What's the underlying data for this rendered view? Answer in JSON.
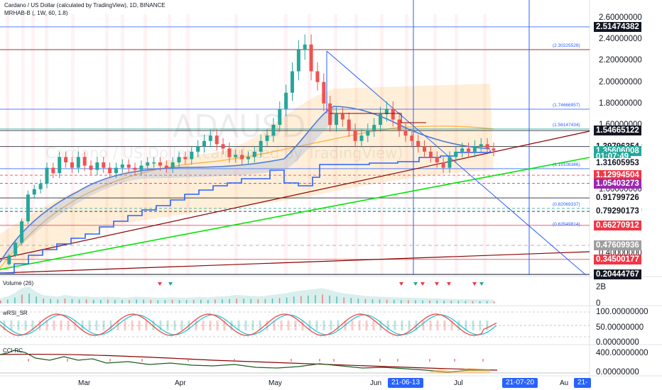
{
  "header": {
    "title_line": "Cardano / US Dollar (calculated by TradingView), 1D, BINANCE",
    "indicator_line": "MRHAB-B (, 1W, 60, 1.8)"
  },
  "watermark": {
    "symbol": "ADAUSD",
    "name": "Cardano / US Dollar (calculated by TradingView)"
  },
  "price_axis": {
    "ticks": [
      {
        "label": "2.60000000",
        "value": 2.6
      },
      {
        "label": "2.40000000",
        "value": 2.4
      },
      {
        "label": "2.20000000",
        "value": 2.2
      },
      {
        "label": "2.00000000",
        "value": 2.0
      },
      {
        "label": "1.80000000",
        "value": 1.8
      },
      {
        "label": "1.60000000",
        "value": 1.6
      },
      {
        "label": "1.40000000",
        "value": 1.4
      },
      {
        "label": "1.00000000",
        "value": 1.0
      },
      {
        "label": "0.80000000",
        "value": 0.8
      },
      {
        "label": "0.40000000",
        "value": 0.4
      }
    ],
    "tags": [
      {
        "label": "2.51474382",
        "value": 2.51474382,
        "bg": "#131722",
        "fg": "#ffffff"
      },
      {
        "label": "1.54665122",
        "value": 1.54665122,
        "bg": "#131722",
        "fg": "#ffffff"
      },
      {
        "label": "1.39796354",
        "value": 1.39796354,
        "bg": "#ffffff",
        "fg": "#131722"
      },
      {
        "label": "1.35606008",
        "value": 1.35606008,
        "bg": "#26a69a",
        "fg": "#ffffff"
      },
      {
        "label": "01:07:49",
        "value": 1.305,
        "bg": "#26a69a",
        "fg": "#ffffff"
      },
      {
        "label": "1.31605953",
        "value": 1.245,
        "bg": "#ffffff",
        "fg": "#131722"
      },
      {
        "label": "1.12994504",
        "value": 1.12994504,
        "bg": "#f23645",
        "fg": "#ffffff"
      },
      {
        "label": "1.05403273",
        "value": 1.05403273,
        "bg": "#9c27b0",
        "fg": "#ffffff"
      },
      {
        "label": "0.91799726",
        "value": 0.91799726,
        "bg": "#ffffff",
        "fg": "#131722"
      },
      {
        "label": "0.79290173",
        "value": 0.79290173,
        "bg": "#ffffff",
        "fg": "#131722"
      },
      {
        "label": "0.66270912",
        "value": 0.66270912,
        "bg": "#f23645",
        "fg": "#ffffff"
      },
      {
        "label": "0.47609936",
        "value": 0.47609936,
        "bg": "#9e9e9e",
        "fg": "#ffffff"
      },
      {
        "label": "0.34500177",
        "value": 0.34500177,
        "bg": "#f23645",
        "fg": "#ffffff"
      },
      {
        "label": "0.20444767",
        "value": 0.20444767,
        "bg": "#131722",
        "fg": "#ffffff"
      }
    ]
  },
  "fib_labels": [
    {
      "label": "(2.30225528)",
      "value": 2.30225528
    },
    {
      "label": "(1.74666957)",
      "value": 1.74666957
    },
    {
      "label": "(1.56147434)",
      "value": 1.56147434
    },
    {
      "label": "(1.19108386)",
      "value": 1.19108386
    },
    {
      "label": "(0.82069337)",
      "value": 0.82069337
    },
    {
      "label": "(0.63549814)",
      "value": 0.63549814
    }
  ],
  "indicators": {
    "volume": {
      "title": "Volume (26)",
      "axis": [
        "2B",
        "0"
      ]
    },
    "wrsi": {
      "title": "wRSI_SR",
      "axis": [
        "100.00000000",
        "50.00000000",
        "0.00000000"
      ]
    },
    "cci": {
      "title": "CCI-RC",
      "axis": [
        "400.00000000",
        "0.00000000"
      ]
    }
  },
  "time_axis": {
    "labels": [
      "Mar",
      "Apr",
      "May",
      "Jun",
      "Jul",
      "Au"
    ],
    "tags": [
      "21-06-13",
      "21-07-20",
      "21-"
    ]
  },
  "colors": {
    "up": "#26a69a",
    "down": "#ef5350",
    "blue_line": "#2962ff",
    "green_trend": "#00e600",
    "red_trend": "#8b0000",
    "orange_ma": "#ffb74d"
  }
}
